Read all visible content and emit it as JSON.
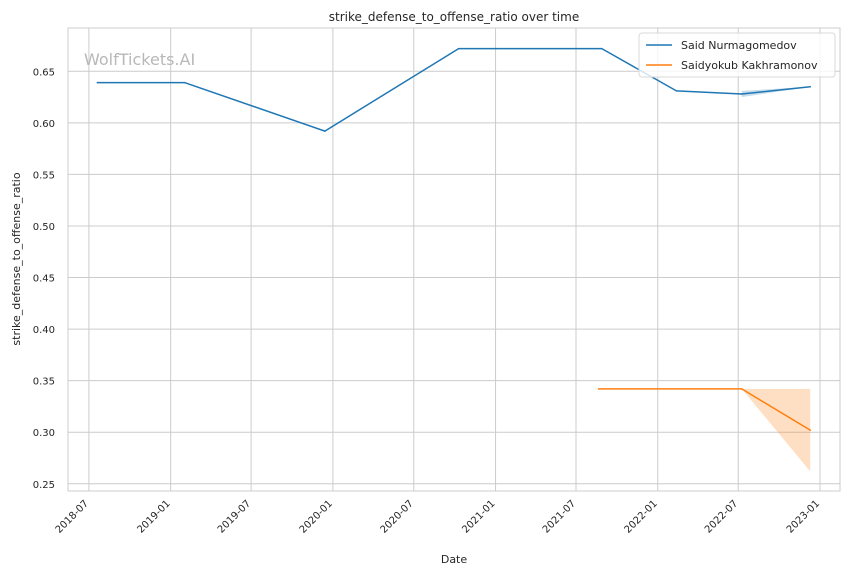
{
  "watermark": "WolfTickets.AI",
  "chart_data": {
    "type": "line",
    "title": "strike_defense_to_offense_ratio over time",
    "xlabel": "Date",
    "ylabel": "strike_defense_to_offense_ratio",
    "x_ticks": [
      "2018-07",
      "2019-01",
      "2019-07",
      "2020-01",
      "2020-07",
      "2021-01",
      "2021-07",
      "2022-01",
      "2022-07",
      "2023-01"
    ],
    "y_ticks": [
      0.25,
      0.3,
      0.35,
      0.4,
      0.45,
      0.5,
      0.55,
      0.6,
      0.65
    ],
    "y_tick_labels": [
      "0.25",
      "0.30",
      "0.35",
      "0.40",
      "0.45",
      "0.50",
      "0.55",
      "0.60",
      "0.65"
    ],
    "xlim": [
      "2018-05-15",
      "2023-02-15"
    ],
    "ylim": [
      0.243,
      0.692
    ],
    "grid": true,
    "legend_position": "top-right",
    "series": [
      {
        "name": "Said Nurmagomedov",
        "color": "#1f77b4",
        "x": [
          "2018-07-20",
          "2019-02-02",
          "2019-12-14",
          "2020-10-10",
          "2021-08-28",
          "2022-02-12",
          "2022-07-09",
          "2022-12-10"
        ],
        "y": [
          0.639,
          0.639,
          0.592,
          0.672,
          0.672,
          0.631,
          0.628,
          0.635
        ],
        "band": {
          "x": [
            "2022-07-09",
            "2022-12-10"
          ],
          "low": [
            0.625,
            0.635
          ],
          "high": [
            0.631,
            0.635
          ]
        }
      },
      {
        "name": "Saidyokub Kakhramonov",
        "color": "#ff7f0e",
        "x": [
          "2021-08-21",
          "2022-07-09",
          "2022-12-10"
        ],
        "y": [
          0.342,
          0.342,
          0.302
        ],
        "band": {
          "x": [
            "2022-07-09",
            "2022-12-10"
          ],
          "low": [
            0.342,
            0.262
          ],
          "high": [
            0.342,
            0.342
          ]
        }
      }
    ]
  }
}
